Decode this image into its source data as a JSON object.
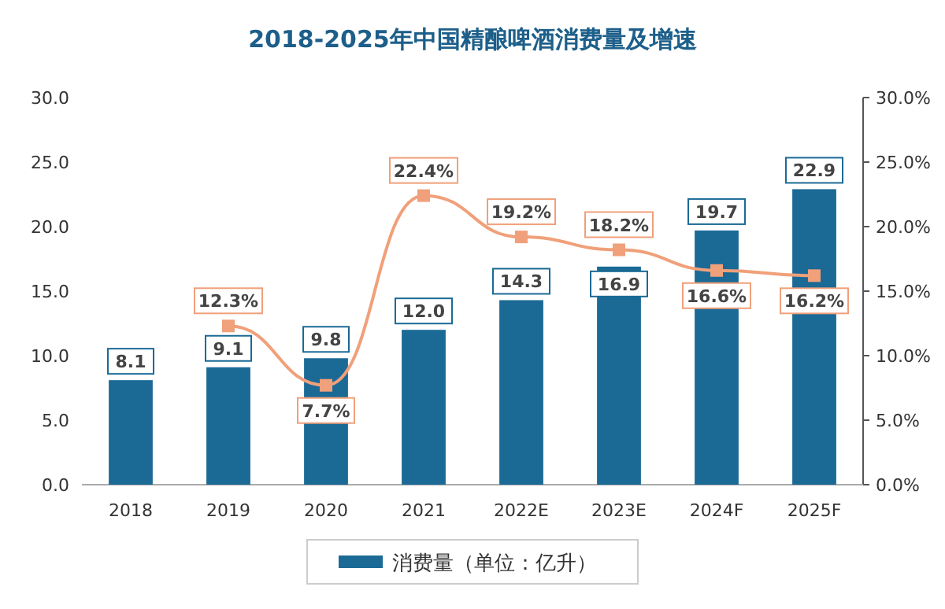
{
  "chart_data": {
    "type": "bar",
    "title": "2018-2025年中国精酿啤酒消费量及增速",
    "categories": [
      "2018",
      "2019",
      "2020",
      "2021",
      "2022E",
      "2023E",
      "2024F",
      "2025F"
    ],
    "series": [
      {
        "name": "消费量（单位：亿升）",
        "color": "#1b6a96",
        "values": [
          8.1,
          9.1,
          9.8,
          12.0,
          14.3,
          16.9,
          19.7,
          22.9
        ],
        "value_labels": [
          "8.1",
          "9.1",
          "9.8",
          "12.0",
          "14.3",
          "16.9",
          "19.7",
          "22.9"
        ]
      },
      {
        "type": "line",
        "axis": "y2",
        "color": "#f0a07a",
        "marker": "square",
        "values": [
          null,
          12.3,
          7.7,
          22.4,
          19.2,
          18.2,
          16.6,
          16.2
        ],
        "value_labels": [
          null,
          "12.3%",
          "7.7%",
          "22.4%",
          "19.2%",
          "18.2%",
          "16.6%",
          "16.2%"
        ]
      }
    ],
    "ylim": [
      0,
      30
    ],
    "yticks": [
      {
        "value": 0,
        "label": "0.0"
      },
      {
        "value": 5,
        "label": "5.0"
      },
      {
        "value": 10,
        "label": "10.0"
      },
      {
        "value": 15,
        "label": "15.0"
      },
      {
        "value": 20,
        "label": "20.0"
      },
      {
        "value": 25,
        "label": "25.0"
      },
      {
        "value": 30,
        "label": "30.0"
      }
    ],
    "y2lim": [
      0,
      30
    ],
    "y2ticks": [
      {
        "value": 0,
        "label": "0.0%"
      },
      {
        "value": 5,
        "label": "5.0%"
      },
      {
        "value": 10,
        "label": "10.0%"
      },
      {
        "value": 15,
        "label": "15.0%"
      },
      {
        "value": 20,
        "label": "20.0%"
      },
      {
        "value": 25,
        "label": "25.0%"
      },
      {
        "value": 30,
        "label": "30.0%"
      }
    ],
    "legend": "bottom",
    "grid": false
  }
}
